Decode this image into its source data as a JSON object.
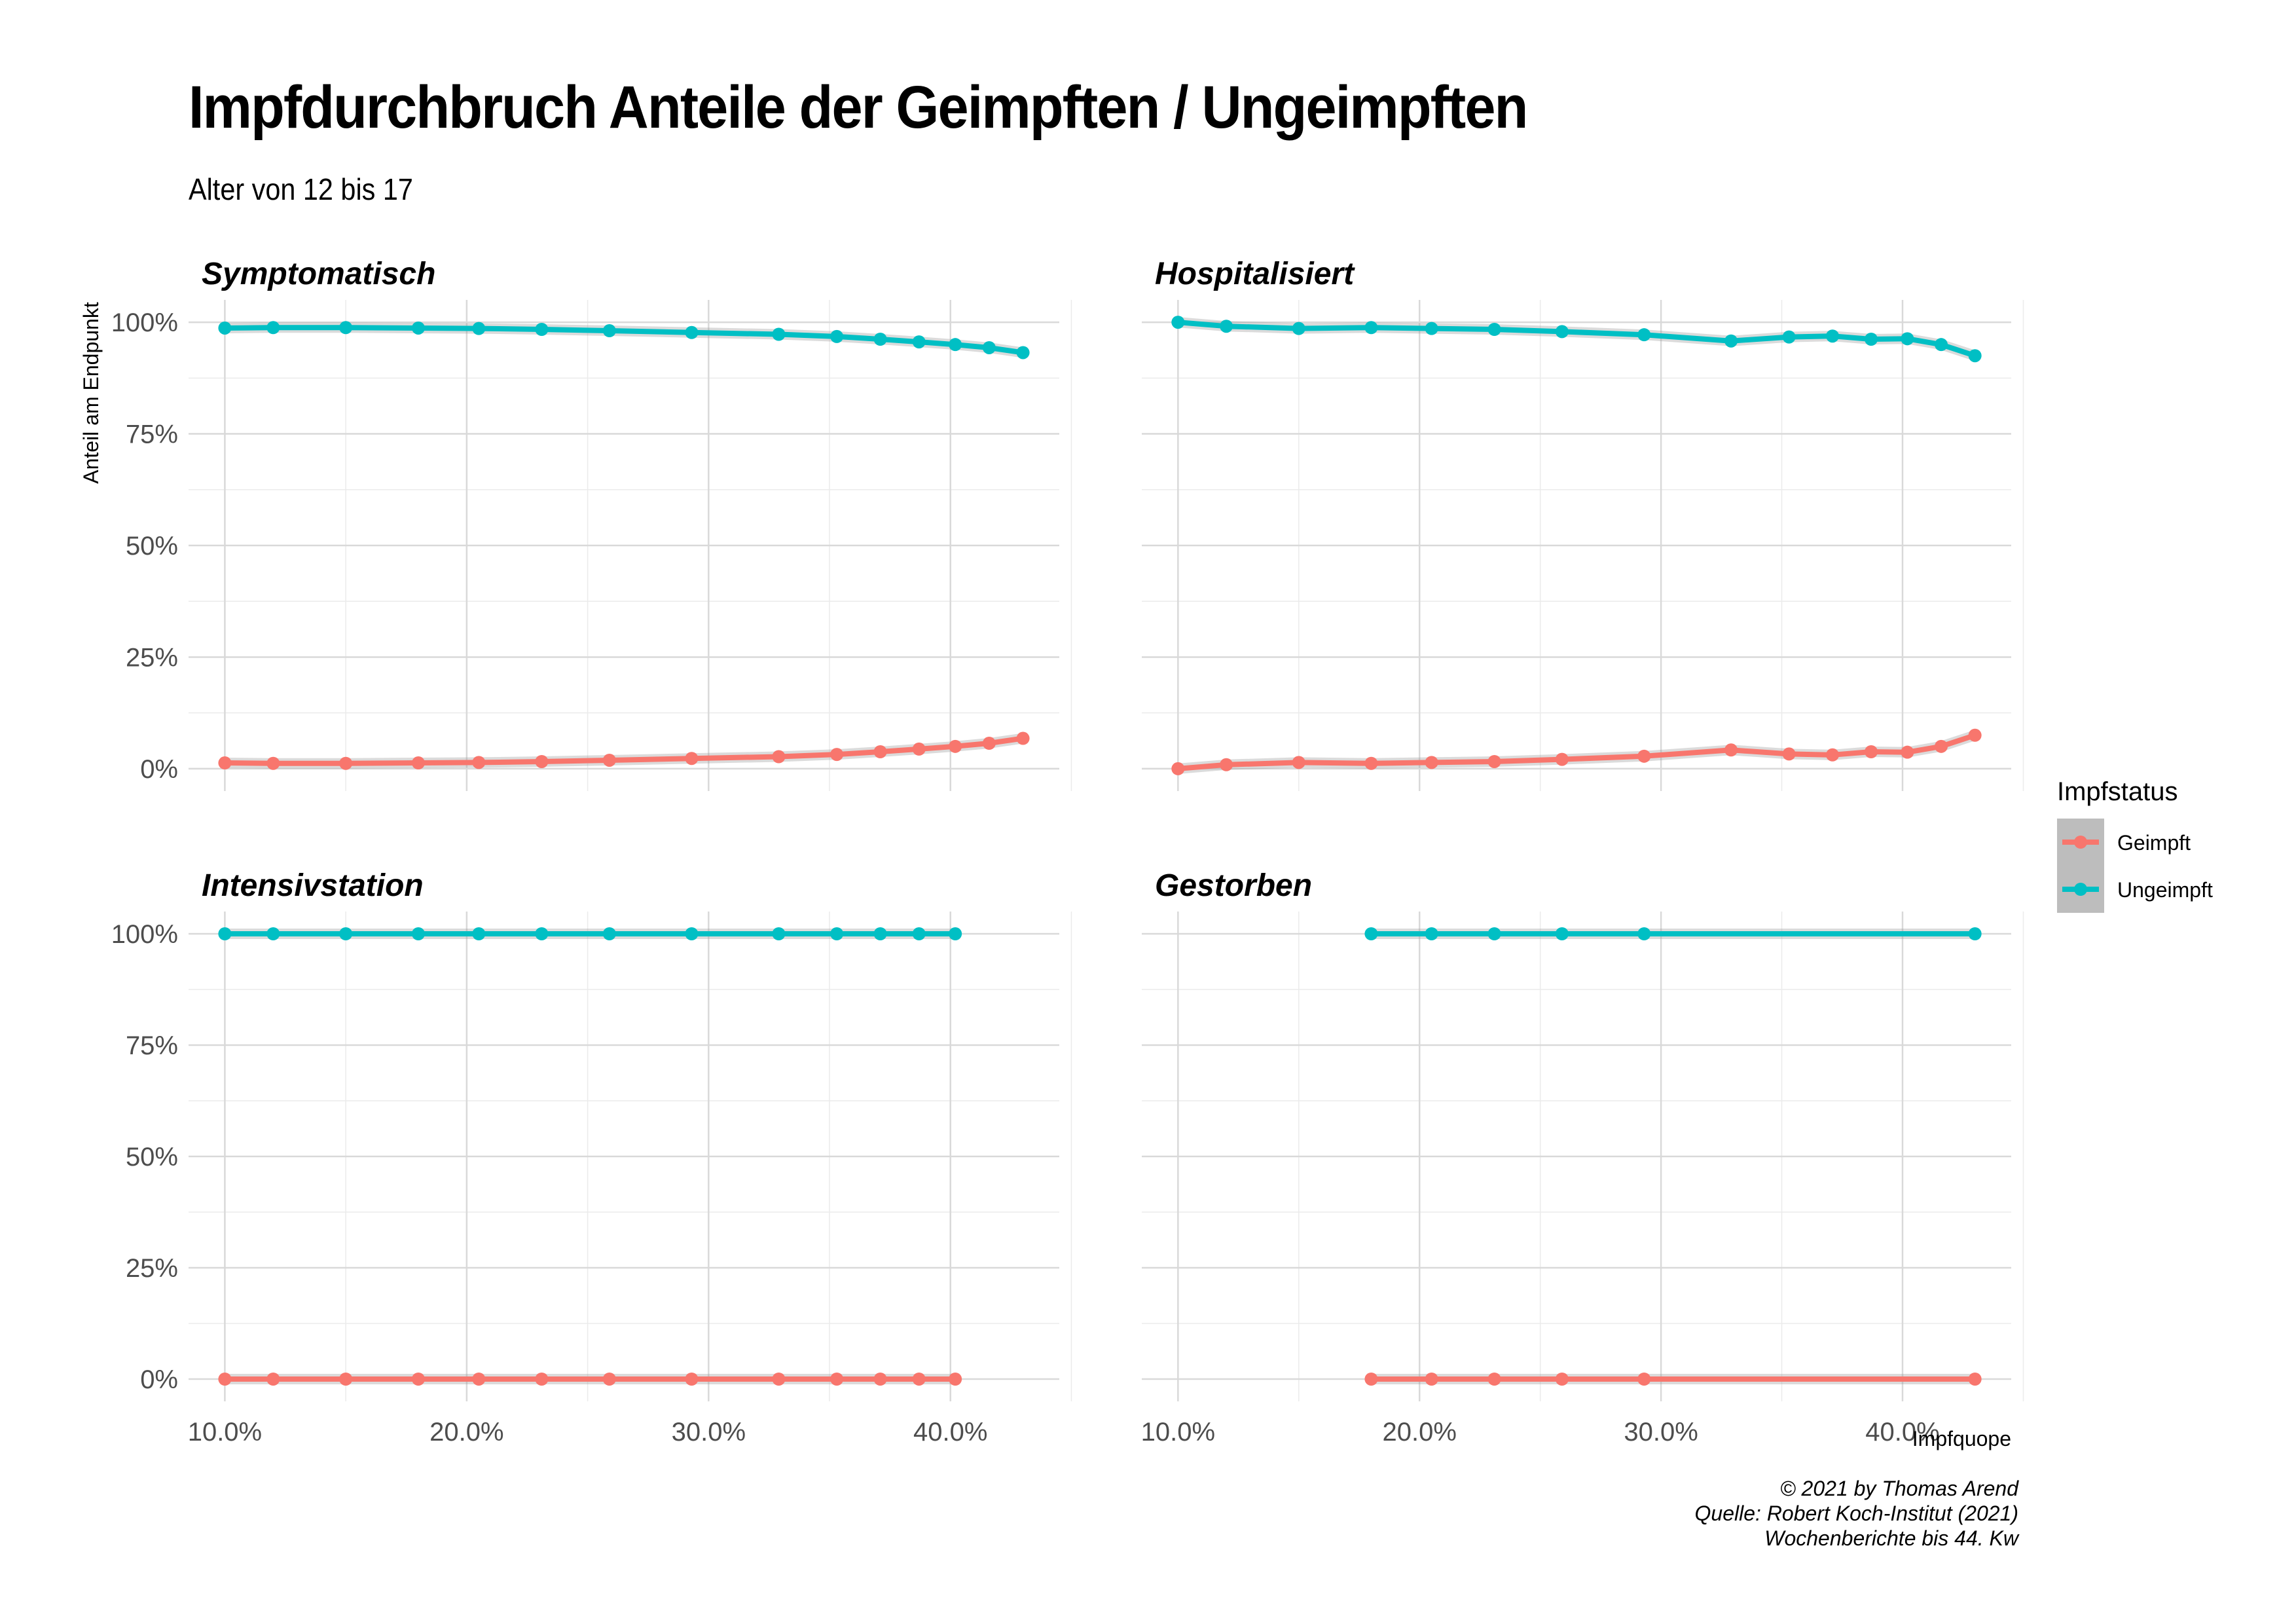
{
  "title": "Impfdurchbruch Anteile der Geimpften / Ungeimpften",
  "subtitle": "Alter von 12 bis 17",
  "caption": [
    "© 2021 by Thomas Arend",
    "Quelle: Robert Koch-Institut (2021)",
    "Wochenberichte bis 44. Kw"
  ],
  "colors": {
    "Geimpft": "#F8766D",
    "Ungeimpft": "#00BFC4"
  },
  "chart_data": {
    "type": "line",
    "xlabel": "Impfquope",
    "ylabel": "Anteil am Endpunkt",
    "xlim": [
      0.085,
      0.445
    ],
    "ylim": [
      -0.05,
      1.05
    ],
    "x_ticks": [
      0.1,
      0.2,
      0.3,
      0.4
    ],
    "x_tick_labels": [
      "10.0%",
      "20.0%",
      "30.0%",
      "40.0%"
    ],
    "y_ticks": [
      0,
      0.25,
      0.5,
      0.75,
      1.0
    ],
    "y_tick_labels": [
      "0%",
      "25%",
      "50%",
      "75%",
      "100%"
    ],
    "legend": {
      "title": "Impfstatus",
      "position": "right",
      "entries": [
        "Geimpft",
        "Ungeimpft"
      ]
    },
    "panels": [
      {
        "name": "Symptomatisch",
        "x": [
          0.1,
          0.12,
          0.15,
          0.18,
          0.205,
          0.231,
          0.259,
          0.293,
          0.329,
          0.353,
          0.371,
          0.387,
          0.402,
          0.416,
          0.43
        ],
        "series": [
          {
            "name": "Geimpft",
            "values": [
              0.013,
              0.012,
              0.012,
              0.013,
              0.014,
              0.016,
              0.019,
              0.023,
              0.027,
              0.032,
              0.038,
              0.044,
              0.05,
              0.057,
              0.068
            ]
          },
          {
            "name": "Ungeimpft",
            "values": [
              0.987,
              0.988,
              0.988,
              0.987,
              0.986,
              0.984,
              0.981,
              0.977,
              0.973,
              0.968,
              0.962,
              0.956,
              0.95,
              0.943,
              0.932
            ]
          }
        ]
      },
      {
        "name": "Hospitalisiert",
        "x": [
          0.1,
          0.12,
          0.15,
          0.18,
          0.205,
          0.231,
          0.259,
          0.293,
          0.329,
          0.353,
          0.371,
          0.387,
          0.402,
          0.416,
          0.43
        ],
        "series": [
          {
            "name": "Geimpft",
            "values": [
              0.0,
              0.009,
              0.014,
              0.012,
              0.014,
              0.016,
              0.021,
              0.028,
              0.042,
              0.033,
              0.031,
              0.038,
              0.037,
              0.05,
              0.075
            ]
          },
          {
            "name": "Ungeimpft",
            "values": [
              1.0,
              0.991,
              0.986,
              0.988,
              0.986,
              0.984,
              0.979,
              0.972,
              0.958,
              0.967,
              0.969,
              0.962,
              0.963,
              0.95,
              0.925
            ]
          }
        ]
      },
      {
        "name": "Intensivstation",
        "x": [
          0.1,
          0.12,
          0.15,
          0.18,
          0.205,
          0.231,
          0.259,
          0.293,
          0.329,
          0.353,
          0.371,
          0.387,
          0.402
        ],
        "series": [
          {
            "name": "Geimpft",
            "values": [
              0,
              0,
              0,
              0,
              0,
              0,
              0,
              0,
              0,
              0,
              0,
              0,
              0
            ]
          },
          {
            "name": "Ungeimpft",
            "values": [
              1,
              1,
              1,
              1,
              1,
              1,
              1,
              1,
              1,
              1,
              1,
              1,
              1
            ]
          }
        ]
      },
      {
        "name": "Gestorben",
        "x": [
          0.18,
          0.205,
          0.231,
          0.259,
          0.293,
          0.43
        ],
        "series": [
          {
            "name": "Geimpft",
            "values": [
              0,
              0,
              0,
              0,
              0,
              0
            ]
          },
          {
            "name": "Ungeimpft",
            "values": [
              1,
              1,
              1,
              1,
              1,
              1
            ]
          }
        ]
      }
    ]
  }
}
